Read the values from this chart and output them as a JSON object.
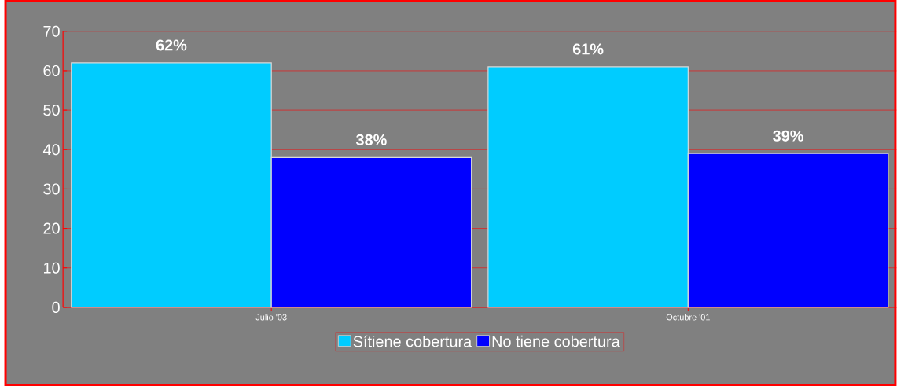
{
  "chart_data": {
    "type": "bar",
    "categories": [
      "Julio '03",
      "Octubre '01"
    ],
    "series": [
      {
        "name": "Sítiene cobertura",
        "color": "#00ccff",
        "values": [
          62,
          61
        ],
        "value_labels": [
          "62%",
          "61%"
        ]
      },
      {
        "name": "No tiene cobertura",
        "color": "#0000ff",
        "values": [
          38,
          39
        ],
        "value_labels": [
          "38%",
          "39%"
        ]
      }
    ],
    "ylim": [
      0,
      70
    ],
    "yticks": [
      0,
      10,
      20,
      30,
      40,
      50,
      60,
      70
    ],
    "grid": "y",
    "legend": "bottom"
  }
}
